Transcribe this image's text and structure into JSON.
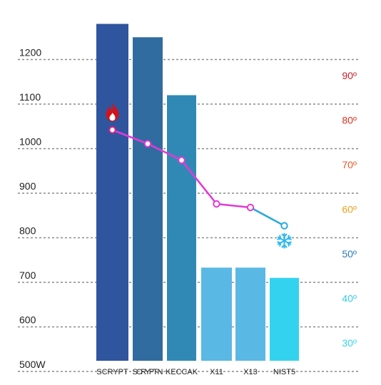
{
  "chart_data": {
    "type": "bar",
    "categories": [
      "SCRYPT",
      "SCRYPT-N",
      "KECCAK",
      "X11",
      "X13",
      "NIST5"
    ],
    "power_axis": {
      "ticks": [
        "500W",
        "600",
        "700",
        "800",
        "900",
        "1000",
        "1100",
        "1200"
      ],
      "tick_values": [
        500,
        600,
        700,
        800,
        900,
        1000,
        1100,
        1200
      ]
    },
    "temp_axis": {
      "ticks": [
        "30º",
        "40º",
        "50º",
        "60º",
        "70º",
        "80º",
        "90º"
      ],
      "tick_values": [
        30,
        40,
        50,
        60,
        70,
        80,
        90
      ],
      "tick_colors": [
        "#35d6e6",
        "#35cce2",
        "#2e79b8",
        "#e8a020",
        "#e65a2a",
        "#e03020",
        "#c81e2c"
      ]
    },
    "series": [
      {
        "type": "bar",
        "values": [
          1280,
          1250,
          1120,
          733,
          733,
          710
        ],
        "colors": [
          "#2f559e",
          "#306c9f",
          "#3089b4",
          "#5ab8e4",
          "#5ab8e4",
          "#33d3f0"
        ]
      },
      {
        "type": "line",
        "axis": "temp",
        "values": [
          79.2,
          76.1,
          72.4,
          62.6,
          61.8,
          57.7
        ],
        "colors": [
          "#e0208a",
          "#e23ad6",
          "#e23ad6",
          "#e23ad6",
          "#e23ad6",
          "#2aa9dc"
        ]
      }
    ],
    "annotations": {
      "hot_icon": "flame-icon",
      "cold_icon": "snowflake-icon",
      "hot_color": "#d0141a",
      "cold_color": "#2cb9ec"
    },
    "grid": true,
    "legend": "none"
  }
}
